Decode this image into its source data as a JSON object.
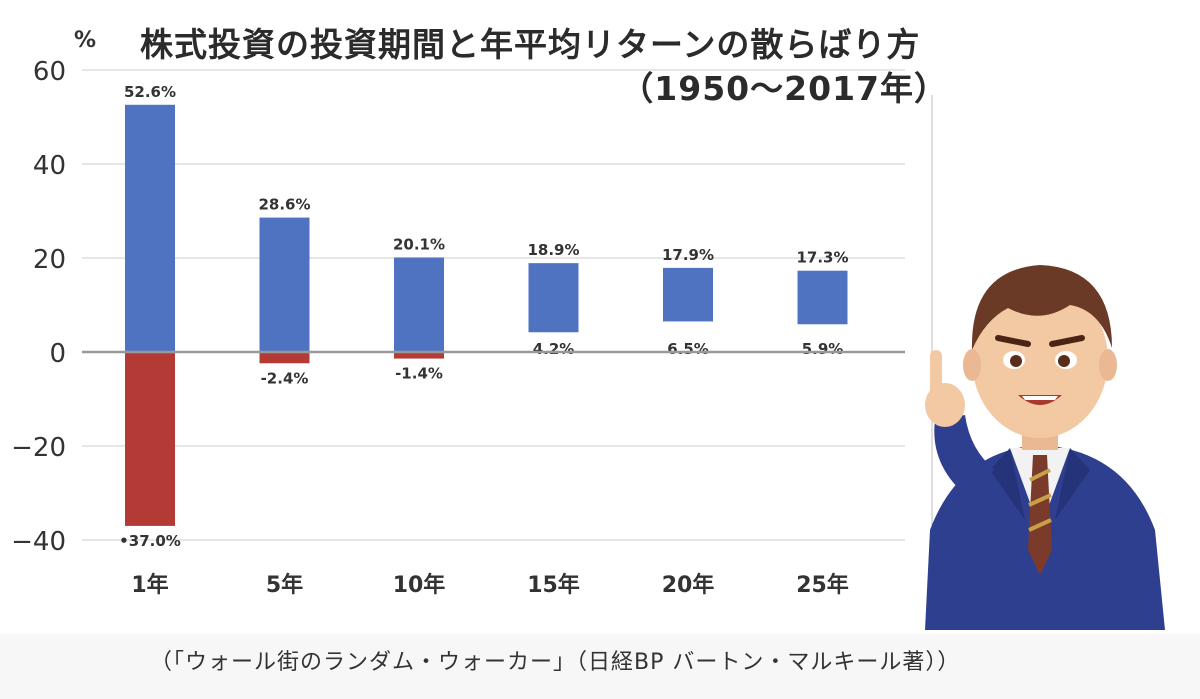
{
  "header": {
    "title_line1": "株式投資の投資期間と年平均リターンの散らばり方",
    "title_line2": "（1950〜2017年）",
    "unit": "%"
  },
  "caption": "（「ウォール街のランダム・ウォーカー」（日経BP バートン・マルキール著））",
  "colors": {
    "positive": "#4f73c0",
    "negative": "#b43a36",
    "grid": "#dddddd",
    "zero_line": "#999999"
  },
  "illustration": "businessman-pointing",
  "chart_data": {
    "type": "bar",
    "categories": [
      "1年",
      "5年",
      "10年",
      "15年",
      "20年",
      "25年"
    ],
    "max_values": [
      52.6,
      28.6,
      20.1,
      18.9,
      17.9,
      17.3
    ],
    "min_values": [
      -37.0,
      -2.4,
      -1.4,
      4.2,
      6.5,
      5.9
    ],
    "max_labels": [
      "52.6%",
      "28.6%",
      "20.1%",
      "18.9%",
      "17.9%",
      "17.3%"
    ],
    "min_labels": [
      "•37.0%",
      "-2.4%",
      "-1.4%",
      "4.2%",
      "6.5%",
      "5.9%"
    ],
    "ylim": [
      -40,
      60
    ],
    "yticks": [
      60,
      40,
      20,
      0,
      -20,
      -40
    ],
    "ytick_labels": [
      "60",
      "40",
      "20",
      "0",
      "−20",
      "−40"
    ],
    "grid": true,
    "title": "株式投資の投資期間と年平均リターンの散らばり方（1950〜2017年）",
    "ylabel": "%"
  }
}
